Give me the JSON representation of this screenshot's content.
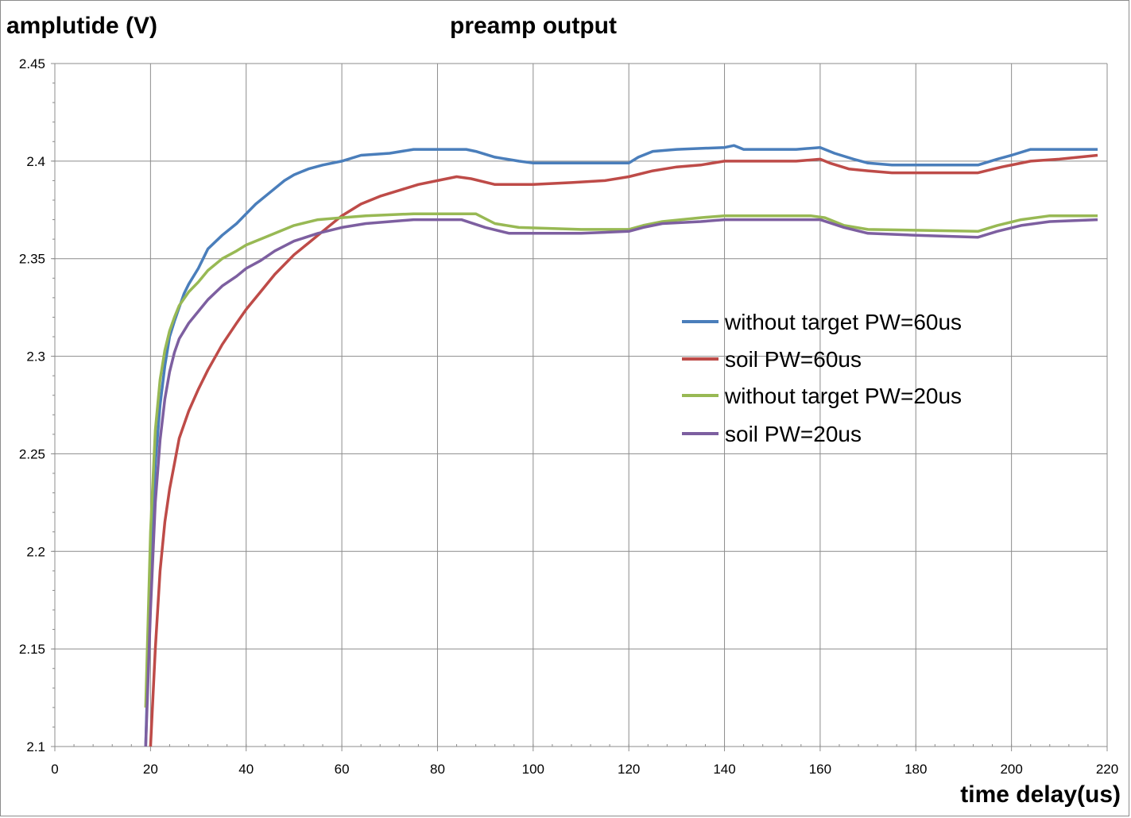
{
  "chart_data": {
    "type": "line",
    "title": "preamp output",
    "xlabel": "time delay(us)",
    "ylabel": "amplutide (V)",
    "xlim": [
      0,
      220
    ],
    "ylim": [
      2.1,
      2.45
    ],
    "x_ticks": [
      "0",
      "20",
      "40",
      "60",
      "80",
      "100",
      "120",
      "140",
      "160",
      "180",
      "200",
      "220"
    ],
    "y_ticks": [
      "2.1",
      "2.15",
      "2.2",
      "2.25",
      "2.3",
      "2.35",
      "2.4",
      "2.45"
    ],
    "grid": true,
    "legend_position": "center-right",
    "series": [
      {
        "name": "without target PW=60us",
        "color": "#4a7ebb",
        "points": [
          [
            19,
            2.1
          ],
          [
            20,
            2.19
          ],
          [
            21,
            2.245
          ],
          [
            22,
            2.275
          ],
          [
            23,
            2.295
          ],
          [
            24,
            2.31
          ],
          [
            25,
            2.318
          ],
          [
            26,
            2.325
          ],
          [
            27,
            2.332
          ],
          [
            28,
            2.337
          ],
          [
            30,
            2.345
          ],
          [
            32,
            2.355
          ],
          [
            35,
            2.362
          ],
          [
            38,
            2.368
          ],
          [
            40,
            2.373
          ],
          [
            42,
            2.378
          ],
          [
            45,
            2.384
          ],
          [
            48,
            2.39
          ],
          [
            50,
            2.393
          ],
          [
            53,
            2.396
          ],
          [
            56,
            2.398
          ],
          [
            60,
            2.4
          ],
          [
            64,
            2.403
          ],
          [
            70,
            2.404
          ],
          [
            75,
            2.406
          ],
          [
            86,
            2.406
          ],
          [
            88,
            2.405
          ],
          [
            92,
            2.402
          ],
          [
            97,
            2.4
          ],
          [
            100,
            2.399
          ],
          [
            110,
            2.399
          ],
          [
            120,
            2.399
          ],
          [
            122,
            2.402
          ],
          [
            125,
            2.405
          ],
          [
            130,
            2.406
          ],
          [
            140,
            2.407
          ],
          [
            142,
            2.408
          ],
          [
            144,
            2.406
          ],
          [
            155,
            2.406
          ],
          [
            160,
            2.407
          ],
          [
            163,
            2.404
          ],
          [
            167,
            2.401
          ],
          [
            170,
            2.399
          ],
          [
            175,
            2.398
          ],
          [
            193,
            2.398
          ],
          [
            197,
            2.401
          ],
          [
            200,
            2.403
          ],
          [
            204,
            2.406
          ],
          [
            218,
            2.406
          ]
        ]
      },
      {
        "name": "soil PW=60us",
        "color": "#be4b48",
        "points": [
          [
            20,
            2.1
          ],
          [
            21,
            2.15
          ],
          [
            22,
            2.19
          ],
          [
            23,
            2.215
          ],
          [
            24,
            2.232
          ],
          [
            25,
            2.245
          ],
          [
            26,
            2.258
          ],
          [
            28,
            2.272
          ],
          [
            30,
            2.283
          ],
          [
            32,
            2.293
          ],
          [
            35,
            2.306
          ],
          [
            38,
            2.317
          ],
          [
            40,
            2.324
          ],
          [
            43,
            2.333
          ],
          [
            46,
            2.342
          ],
          [
            50,
            2.352
          ],
          [
            53,
            2.358
          ],
          [
            56,
            2.364
          ],
          [
            60,
            2.372
          ],
          [
            64,
            2.378
          ],
          [
            68,
            2.382
          ],
          [
            72,
            2.385
          ],
          [
            76,
            2.388
          ],
          [
            80,
            2.39
          ],
          [
            84,
            2.392
          ],
          [
            87,
            2.391
          ],
          [
            92,
            2.388
          ],
          [
            100,
            2.388
          ],
          [
            108,
            2.389
          ],
          [
            115,
            2.39
          ],
          [
            120,
            2.392
          ],
          [
            125,
            2.395
          ],
          [
            130,
            2.397
          ],
          [
            135,
            2.398
          ],
          [
            140,
            2.4
          ],
          [
            155,
            2.4
          ],
          [
            160,
            2.401
          ],
          [
            162,
            2.399
          ],
          [
            166,
            2.396
          ],
          [
            170,
            2.395
          ],
          [
            175,
            2.394
          ],
          [
            193,
            2.394
          ],
          [
            198,
            2.397
          ],
          [
            204,
            2.4
          ],
          [
            210,
            2.401
          ],
          [
            218,
            2.403
          ]
        ]
      },
      {
        "name": "without target PW=20us",
        "color": "#98b954",
        "points": [
          [
            19,
            2.12
          ],
          [
            20,
            2.21
          ],
          [
            21,
            2.262
          ],
          [
            22,
            2.288
          ],
          [
            23,
            2.303
          ],
          [
            24,
            2.313
          ],
          [
            25,
            2.32
          ],
          [
            26,
            2.326
          ],
          [
            28,
            2.333
          ],
          [
            30,
            2.338
          ],
          [
            32,
            2.344
          ],
          [
            35,
            2.35
          ],
          [
            38,
            2.354
          ],
          [
            40,
            2.357
          ],
          [
            43,
            2.36
          ],
          [
            46,
            2.363
          ],
          [
            50,
            2.367
          ],
          [
            55,
            2.37
          ],
          [
            60,
            2.371
          ],
          [
            65,
            2.372
          ],
          [
            75,
            2.373
          ],
          [
            88,
            2.373
          ],
          [
            92,
            2.368
          ],
          [
            97,
            2.366
          ],
          [
            110,
            2.365
          ],
          [
            120,
            2.365
          ],
          [
            123,
            2.367
          ],
          [
            127,
            2.369
          ],
          [
            135,
            2.371
          ],
          [
            140,
            2.372
          ],
          [
            158,
            2.372
          ],
          [
            161,
            2.371
          ],
          [
            165,
            2.367
          ],
          [
            170,
            2.365
          ],
          [
            193,
            2.364
          ],
          [
            197,
            2.367
          ],
          [
            202,
            2.37
          ],
          [
            208,
            2.372
          ],
          [
            218,
            2.372
          ]
        ]
      },
      {
        "name": "soil PW=20us",
        "color": "#7d5fa0",
        "points": [
          [
            19,
            2.1
          ],
          [
            20,
            2.17
          ],
          [
            21,
            2.225
          ],
          [
            22,
            2.257
          ],
          [
            23,
            2.278
          ],
          [
            24,
            2.292
          ],
          [
            25,
            2.302
          ],
          [
            26,
            2.309
          ],
          [
            28,
            2.317
          ],
          [
            30,
            2.323
          ],
          [
            32,
            2.329
          ],
          [
            35,
            2.336
          ],
          [
            38,
            2.341
          ],
          [
            40,
            2.345
          ],
          [
            43,
            2.349
          ],
          [
            46,
            2.354
          ],
          [
            50,
            2.359
          ],
          [
            55,
            2.363
          ],
          [
            60,
            2.366
          ],
          [
            65,
            2.368
          ],
          [
            75,
            2.37
          ],
          [
            85,
            2.37
          ],
          [
            90,
            2.366
          ],
          [
            95,
            2.363
          ],
          [
            110,
            2.363
          ],
          [
            120,
            2.364
          ],
          [
            123,
            2.366
          ],
          [
            127,
            2.368
          ],
          [
            135,
            2.369
          ],
          [
            140,
            2.37
          ],
          [
            160,
            2.37
          ],
          [
            165,
            2.366
          ],
          [
            170,
            2.363
          ],
          [
            180,
            2.362
          ],
          [
            193,
            2.361
          ],
          [
            197,
            2.364
          ],
          [
            202,
            2.367
          ],
          [
            208,
            2.369
          ],
          [
            218,
            2.37
          ]
        ]
      }
    ]
  }
}
